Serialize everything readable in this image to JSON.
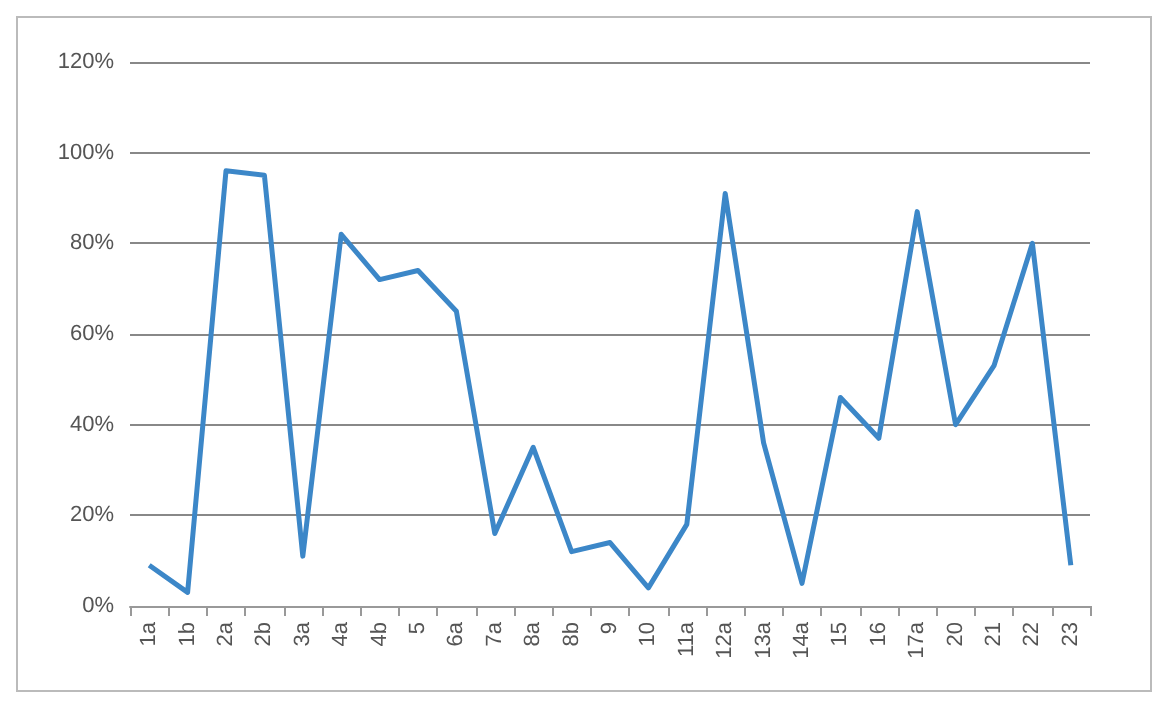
{
  "chart_data": {
    "type": "line",
    "categories": [
      "1a",
      "1b",
      "2a",
      "2b",
      "3a",
      "4a",
      "4b",
      "5",
      "6a",
      "7a",
      "8a",
      "8b",
      "9",
      "10",
      "11a",
      "12a",
      "13a",
      "14a",
      "15",
      "16",
      "17a",
      "20",
      "21",
      "22",
      "23"
    ],
    "series": [
      {
        "color": "#3c87c8",
        "values": [
          9,
          3,
          96,
          95,
          11,
          82,
          72,
          74,
          65,
          16,
          35,
          12,
          14,
          4,
          18,
          91,
          36,
          5,
          46,
          37,
          87,
          40,
          53,
          80,
          9
        ]
      }
    ],
    "ylim": [
      0,
      120
    ],
    "yticks": [
      {
        "value": 0,
        "label": "0%"
      },
      {
        "value": 20,
        "label": "20%"
      },
      {
        "value": 40,
        "label": "40%"
      },
      {
        "value": 60,
        "label": "60%"
      },
      {
        "value": 80,
        "label": "80%"
      },
      {
        "value": 100,
        "label": "100%"
      },
      {
        "value": 120,
        "label": "120%"
      }
    ],
    "grid": "y",
    "marker": "none",
    "line_style": "solid"
  }
}
